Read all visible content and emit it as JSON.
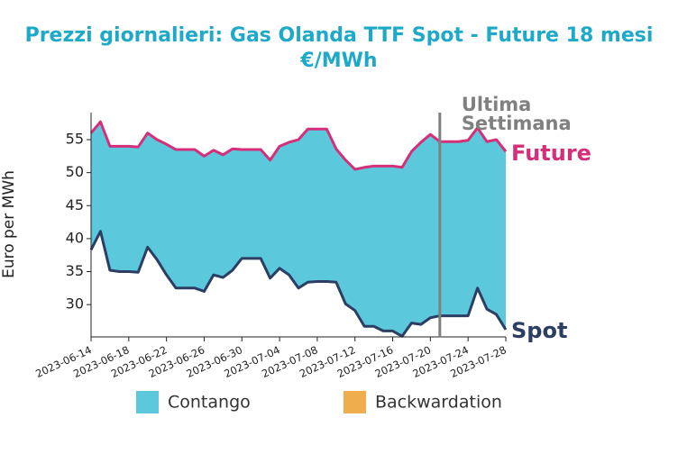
{
  "chart_data": {
    "type": "area-between",
    "title": "Prezzi giornalieri: Gas Olanda TTF Spot - Future 18 mesi",
    "subtitle": "€/MWh",
    "y_label": "Euro per MWh",
    "x": [
      "2023-06-14",
      "2023-06-15",
      "2023-06-16",
      "2023-06-17",
      "2023-06-18",
      "2023-06-19",
      "2023-06-20",
      "2023-06-21",
      "2023-06-22",
      "2023-06-23",
      "2023-06-24",
      "2023-06-25",
      "2023-06-26",
      "2023-06-27",
      "2023-06-28",
      "2023-06-29",
      "2023-06-30",
      "2023-07-01",
      "2023-07-02",
      "2023-07-03",
      "2023-07-04",
      "2023-07-05",
      "2023-07-06",
      "2023-07-07",
      "2023-07-08",
      "2023-07-09",
      "2023-07-10",
      "2023-07-11",
      "2023-07-12",
      "2023-07-13",
      "2023-07-14",
      "2023-07-15",
      "2023-07-16",
      "2023-07-17",
      "2023-07-18",
      "2023-07-19",
      "2023-07-20",
      "2023-07-21",
      "2023-07-22",
      "2023-07-23",
      "2023-07-24",
      "2023-07-25",
      "2023-07-26",
      "2023-07-27",
      "2023-07-28"
    ],
    "xlim": [
      "2023-06-14",
      "2023-07-28"
    ],
    "xticks": [
      "2023-06-14",
      "2023-06-18",
      "2023-06-22",
      "2023-06-26",
      "2023-06-30",
      "2023-07-04",
      "2023-07-08",
      "2023-07-12",
      "2023-07-16",
      "2023-07-20",
      "2023-07-24",
      "2023-07-28"
    ],
    "ylim": [
      25.1,
      59.1
    ],
    "yticks": [
      30,
      35,
      40,
      45,
      50,
      55
    ],
    "series": [
      {
        "name": "Future",
        "color": "#d62f7a",
        "values": [
          56.0,
          57.7,
          54.0,
          54.0,
          54.0,
          53.9,
          56.0,
          55.0,
          54.3,
          53.5,
          53.5,
          53.5,
          52.5,
          53.4,
          52.7,
          53.6,
          53.5,
          53.5,
          53.5,
          51.9,
          54.0,
          54.6,
          55.0,
          56.6,
          56.6,
          56.6,
          53.6,
          51.9,
          50.5,
          50.8,
          51.0,
          51.0,
          51.0,
          50.8,
          53.2,
          54.6,
          55.8,
          54.7,
          54.7,
          54.7,
          54.9,
          56.8,
          54.7,
          55.0,
          53.2
        ]
      },
      {
        "name": "Spot",
        "color": "#2c3e63",
        "values": [
          38.3,
          41.1,
          35.2,
          35.0,
          35.0,
          34.9,
          38.7,
          36.8,
          34.5,
          32.5,
          32.5,
          32.5,
          32.0,
          34.5,
          34.1,
          35.2,
          37.0,
          37.0,
          37.0,
          34.0,
          35.5,
          34.5,
          32.5,
          33.4,
          33.5,
          33.5,
          33.4,
          30.1,
          29.1,
          26.7,
          26.7,
          26.0,
          26.0,
          25.2,
          27.2,
          27.0,
          28.0,
          28.3,
          28.3,
          28.3,
          28.3,
          32.5,
          29.3,
          28.5,
          26.2
        ]
      }
    ],
    "legend": [
      {
        "name": "Contango",
        "color": "#5bc8dc"
      },
      {
        "name": "Backwardation",
        "color": "#f0ad4e"
      }
    ],
    "annotation": {
      "x": "2023-07-21",
      "lines": [
        "Ultima",
        "Settimana"
      ],
      "color": "#808080"
    }
  }
}
